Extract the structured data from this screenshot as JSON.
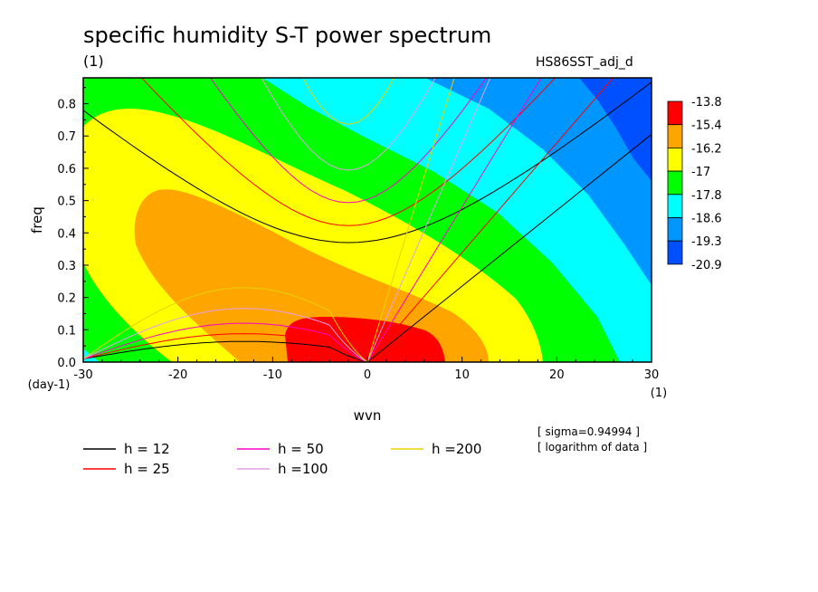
{
  "chart_data": {
    "type": "heatmap",
    "title": "specific humidity S-T power spectrum",
    "unit_label": "(1)",
    "dataset_label": "HS86SST_adj_d",
    "xlabel": "wvn",
    "ylabel": "freq",
    "x_unit": "(1)",
    "y_unit": "(day-1)",
    "xlim": [
      -30,
      30
    ],
    "ylim": [
      0,
      0.88
    ],
    "x_ticks": [
      -30,
      -20,
      -10,
      0,
      10,
      20,
      30
    ],
    "y_ticks": [
      0.0,
      0.1,
      0.2,
      0.3,
      0.4,
      0.5,
      0.6,
      0.7,
      0.8
    ],
    "colorbar": {
      "levels": [
        "-13.8",
        "-15.4",
        "-16.2",
        "-17",
        "-17.8",
        "-18.6",
        "-19.3",
        "-20.9"
      ],
      "colors": [
        "#ff0000",
        "#ffa500",
        "#ffff00",
        "#00ff00",
        "#00ffff",
        "#0096ff",
        "#0050ff"
      ]
    },
    "field_bands": [
      {
        "value_range": "> -13.8",
        "color": "#ff0000",
        "region_approx": "wvn -9 to 8, freq 0 to 0.13"
      },
      {
        "value_range": "-15.4 to -13.8",
        "color": "#ffa500",
        "region_approx": "wvn -25 to 12, freq 0 to 0.53"
      },
      {
        "value_range": "-16.2 to -15.4",
        "color": "#ffff00"
      },
      {
        "value_range": "-17 to -16.2",
        "color": "#00ff00"
      },
      {
        "value_range": "-17.8 to -17",
        "color": "#00ffff"
      },
      {
        "value_range": "-18.6 to -17.8",
        "color": "#0096ff"
      },
      {
        "value_range": "< -18.6",
        "color": "#0050ff",
        "region_approx": "upper right corner"
      }
    ],
    "dispersion_curves": [
      {
        "name": "h = 12",
        "color": "#000000"
      },
      {
        "name": "h = 25",
        "color": "#ff0000"
      },
      {
        "name": "h = 50",
        "color": "#ff00c8"
      },
      {
        "name": "h =100",
        "color": "#e6a0e6"
      },
      {
        "name": "h =200",
        "color": "#e6d200"
      }
    ],
    "annotations": [
      "[ sigma=0.94994 ]",
      "[ logarithm of data ]"
    ]
  }
}
